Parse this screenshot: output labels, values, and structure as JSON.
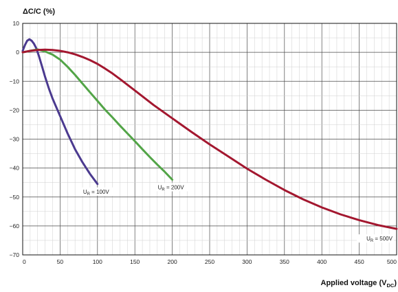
{
  "chart_data": {
    "type": "line",
    "ylabel": "ΔC/C (%)",
    "xlabel": {
      "prefix": "Applied voltage (V",
      "sub": "DC",
      "suffix": ")"
    },
    "xlim": [
      0,
      500
    ],
    "ylim": [
      -70,
      10
    ],
    "xticks": [
      0,
      50,
      100,
      150,
      200,
      250,
      300,
      350,
      400,
      450,
      500
    ],
    "yticks": [
      10,
      0,
      -10,
      -20,
      -30,
      -40,
      -50,
      -60,
      -70
    ],
    "grid": true,
    "series": [
      {
        "name": {
          "main": "U",
          "sub": "R",
          "suffix": " = 100V"
        },
        "color": "#4b3a8f",
        "x": [
          0,
          3,
          6,
          9,
          12,
          15,
          18,
          22,
          26,
          30,
          35,
          40,
          50,
          60,
          70,
          80,
          90,
          100
        ],
        "y": [
          0.5,
          2.5,
          4.0,
          4.5,
          4.0,
          3.0,
          1.5,
          -1.5,
          -5.0,
          -8.5,
          -12.5,
          -16.0,
          -22.0,
          -28.0,
          -33.5,
          -38.0,
          -42.0,
          -45.5
        ]
      },
      {
        "name": {
          "main": "U",
          "sub": "R",
          "suffix": " = 200V"
        },
        "color": "#52a447",
        "x": [
          0,
          10,
          20,
          30,
          40,
          50,
          60,
          70,
          80,
          90,
          100,
          110,
          120,
          130,
          140,
          150,
          160,
          170,
          180,
          190,
          200
        ],
        "y": [
          0.0,
          0.5,
          1.0,
          0.3,
          -0.8,
          -2.5,
          -5.0,
          -7.8,
          -10.8,
          -13.8,
          -16.8,
          -19.8,
          -22.5,
          -25.3,
          -28.0,
          -30.7,
          -33.5,
          -36.2,
          -38.8,
          -41.3,
          -44.0
        ]
      },
      {
        "name": {
          "main": "U",
          "sub": "R",
          "suffix": " = 500V"
        },
        "color": "#a3172f",
        "x": [
          0,
          10,
          20,
          30,
          40,
          50,
          60,
          70,
          80,
          90,
          100,
          110,
          120,
          130,
          140,
          150,
          175,
          200,
          225,
          250,
          275,
          300,
          325,
          350,
          375,
          400,
          425,
          450,
          475,
          500
        ],
        "y": [
          0.0,
          0.5,
          0.8,
          0.9,
          0.8,
          0.5,
          0.0,
          -0.7,
          -1.6,
          -2.7,
          -4.0,
          -5.6,
          -7.3,
          -9.2,
          -11.2,
          -13.2,
          -18.2,
          -22.8,
          -27.4,
          -31.8,
          -36.0,
          -40.2,
          -44.0,
          -47.6,
          -50.8,
          -53.6,
          -56.0,
          -58.0,
          -59.7,
          -61.0
        ]
      }
    ]
  }
}
